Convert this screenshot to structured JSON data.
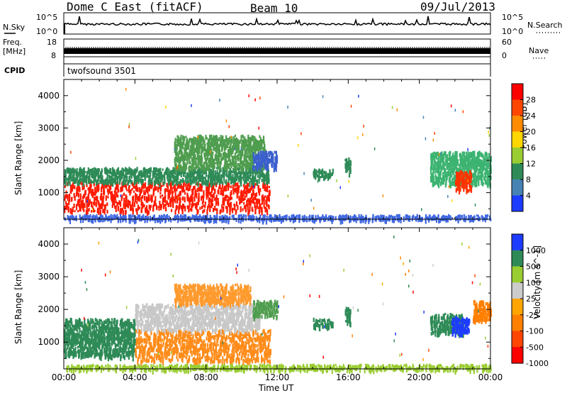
{
  "header": {
    "station": "Dome C East (fitACF)",
    "beam": "Beam 10",
    "date": "09/Jul/2013"
  },
  "panels": {
    "nsky": {
      "label": "N.Sky",
      "ticks": [
        "10^5",
        "10^0"
      ]
    },
    "nsearch": {
      "label": "N.Search",
      "ticks": [
        "10^5",
        "10^0"
      ]
    },
    "freq": {
      "label_top": "Freq.",
      "label_unit": "[MHz]",
      "ticks": [
        "18",
        "8"
      ]
    },
    "nave": {
      "label": "Nave",
      "ticks": [
        "60",
        "0"
      ]
    },
    "cpid": {
      "label": "CPID",
      "value": "twofsound 3501"
    }
  },
  "chart_data": [
    {
      "type": "heatmap",
      "title": "",
      "ylabel": "Slant Range [km]",
      "xlabel": "Time UT",
      "ylim": [
        180,
        4500
      ],
      "yticks": [
        1000,
        2000,
        3000,
        4000
      ],
      "xticks": [
        "00:00",
        "04:00",
        "08:00",
        "12:00",
        "16:00",
        "20:00",
        "00:00"
      ],
      "xlim_hours": [
        0,
        24
      ],
      "colorbar": {
        "label": "Power [dB]",
        "ticks": [
          "28",
          "24",
          "20",
          "16",
          "12",
          "8",
          "4"
        ],
        "colors": [
          "#ff0000",
          "#ff4500",
          "#ff8c00",
          "#ffd700",
          "#9acd32",
          "#2e8b57",
          "#4682b4",
          "#1e3cff"
        ]
      },
      "regions": [
        {
          "t0": 0,
          "t1": 11.6,
          "r0": 450,
          "r1": 1350,
          "color": "#ff1a00"
        },
        {
          "t0": 0,
          "t1": 11.5,
          "r0": 1350,
          "r1": 1800,
          "color": "#2e8b57"
        },
        {
          "t0": 6.2,
          "t1": 11.3,
          "r0": 1800,
          "r1": 2800,
          "color": "#4f9d4f"
        },
        {
          "t0": 10.6,
          "t1": 12.0,
          "r0": 1800,
          "r1": 2300,
          "color": "#3a5fcd"
        },
        {
          "t0": 14.0,
          "t1": 15.1,
          "r0": 1500,
          "r1": 1750,
          "color": "#2e8b57"
        },
        {
          "t0": 15.8,
          "t1": 16.1,
          "r0": 1600,
          "r1": 2100,
          "color": "#2e8b57"
        },
        {
          "t0": 20.6,
          "t1": 24.0,
          "r0": 1300,
          "r1": 2300,
          "color": "#3cb371"
        },
        {
          "t0": 22.0,
          "t1": 22.9,
          "r0": 1100,
          "r1": 1700,
          "color": "#ff3300"
        },
        {
          "t0": 0,
          "t1": 24.0,
          "r0": 200,
          "r1": 340,
          "color": "#4169e1"
        }
      ]
    },
    {
      "type": "heatmap",
      "title": "",
      "ylabel": "Slant Range [km]",
      "xlabel": "Time UT",
      "ylim": [
        180,
        4500
      ],
      "yticks": [
        1000,
        2000,
        3000,
        4000
      ],
      "xticks": [
        "00:00",
        "04:00",
        "08:00",
        "12:00",
        "16:00",
        "20:00",
        "00:00"
      ],
      "xlim_hours": [
        0,
        24
      ],
      "colorbar": {
        "label": "Velocity [m s^-1]",
        "ticks": [
          "1000",
          "500",
          "100",
          "25",
          "-25",
          "-100",
          "-500",
          "-1000"
        ],
        "colors": [
          "#1e3cff",
          "#2e8b57",
          "#9acd32",
          "#cccccc",
          "#ffa500",
          "#ff7f00",
          "#ff4500",
          "#ff0000"
        ]
      },
      "regions": [
        {
          "t0": 0,
          "t1": 4.0,
          "r0": 600,
          "r1": 1750,
          "color": "#2e8b57"
        },
        {
          "t0": 4.0,
          "t1": 11.6,
          "r0": 450,
          "r1": 1400,
          "color": "#ff8c1a"
        },
        {
          "t0": 4.0,
          "t1": 11.0,
          "r0": 1400,
          "r1": 2200,
          "color": "#c8c8c8"
        },
        {
          "t0": 6.2,
          "t1": 10.5,
          "r0": 2200,
          "r1": 2800,
          "color": "#ff9a2e"
        },
        {
          "t0": 10.6,
          "t1": 12.0,
          "r0": 1800,
          "r1": 2300,
          "color": "#4f9d4f"
        },
        {
          "t0": 14.0,
          "t1": 15.1,
          "r0": 1500,
          "r1": 1750,
          "color": "#2e8b57"
        },
        {
          "t0": 15.8,
          "t1": 16.1,
          "r0": 1600,
          "r1": 2100,
          "color": "#2e8b57"
        },
        {
          "t0": 20.6,
          "t1": 22.5,
          "r0": 1300,
          "r1": 1900,
          "color": "#2e8b57"
        },
        {
          "t0": 21.8,
          "t1": 22.8,
          "r0": 1300,
          "r1": 1800,
          "color": "#1e3cff"
        },
        {
          "t0": 23.0,
          "t1": 24.0,
          "r0": 1700,
          "r1": 2300,
          "color": "#ff7f00"
        },
        {
          "t0": 0,
          "t1": 24.0,
          "r0": 200,
          "r1": 340,
          "color": "#9acd32"
        }
      ]
    }
  ]
}
